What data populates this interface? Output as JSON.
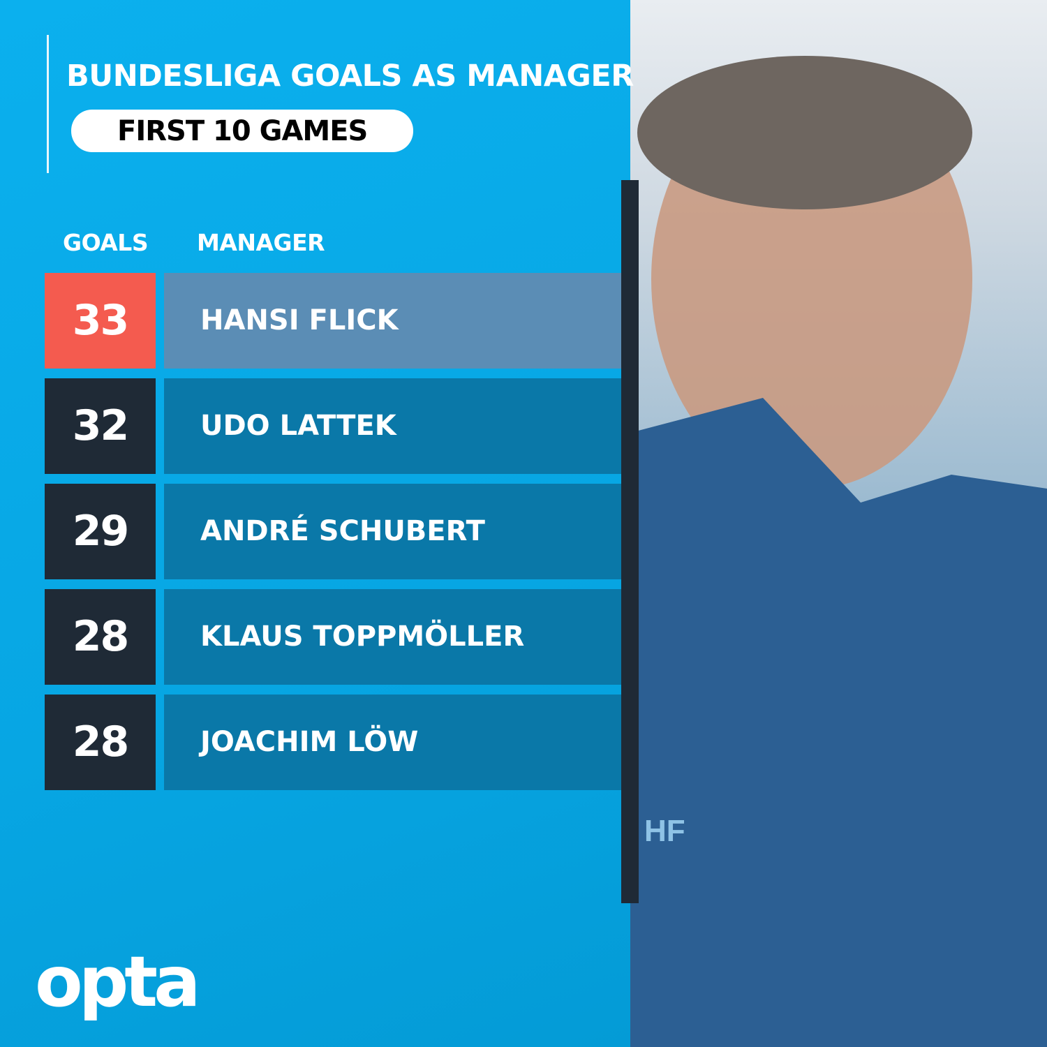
{
  "title": "BUNDESLIGA GOALS AS MANAGER",
  "subtitle": "FIRST 10 GAMES",
  "logo": "opta",
  "colors": {
    "background": "#07a6e3",
    "highlight_goals": "#f45b4f",
    "highlight_name": "#5b8db5",
    "goals_box": "#1f2a36",
    "name_box": "#0a78a8"
  },
  "photo": {
    "description_icon": "manager-portrait",
    "jacket_text": "HF"
  },
  "chart_data": {
    "type": "table",
    "title": "BUNDESLIGA GOALS AS MANAGER",
    "subtitle": "FIRST 10 GAMES",
    "columns": [
      "GOALS",
      "MANAGER"
    ],
    "rows": [
      {
        "goals": "33",
        "manager": "HANSI FLICK",
        "highlight": true
      },
      {
        "goals": "32",
        "manager": "UDO LATTEK",
        "highlight": false
      },
      {
        "goals": "29",
        "manager": "ANDRÉ SCHUBERT",
        "highlight": false
      },
      {
        "goals": "28",
        "manager": "KLAUS TOPPMÖLLER",
        "highlight": false
      },
      {
        "goals": "28",
        "manager": "JOACHIM LÖW",
        "highlight": false
      }
    ]
  }
}
